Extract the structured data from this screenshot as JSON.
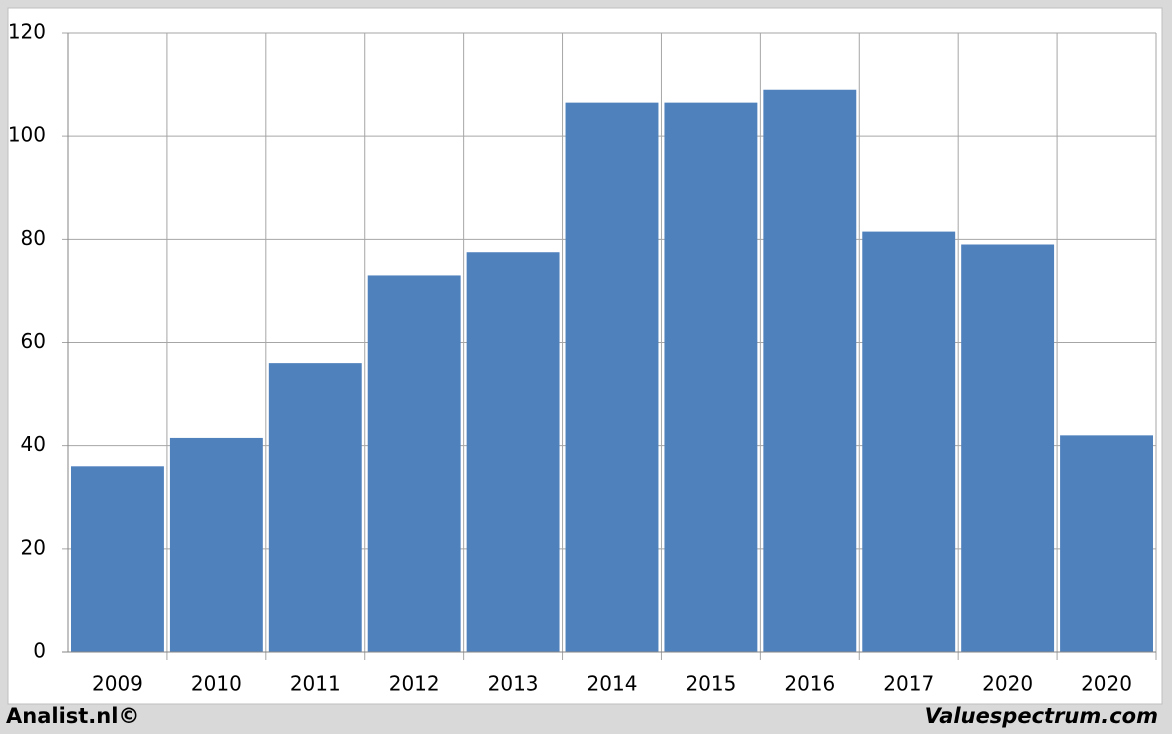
{
  "chart_data": {
    "type": "bar",
    "categories": [
      "2009",
      "2010",
      "2011",
      "2012",
      "2013",
      "2014",
      "2015",
      "2016",
      "2017",
      "2020",
      "2020"
    ],
    "values": [
      36,
      41.5,
      56,
      73,
      77.5,
      106.5,
      106.5,
      109,
      81.5,
      79,
      42
    ],
    "color": "#4f81bd",
    "ylim": [
      0,
      120
    ],
    "yticks": [
      0,
      20,
      40,
      60,
      80,
      100,
      120
    ],
    "grid": true,
    "footer_left": "Analist.nl©",
    "footer_right": "Valuespectrum.com"
  }
}
